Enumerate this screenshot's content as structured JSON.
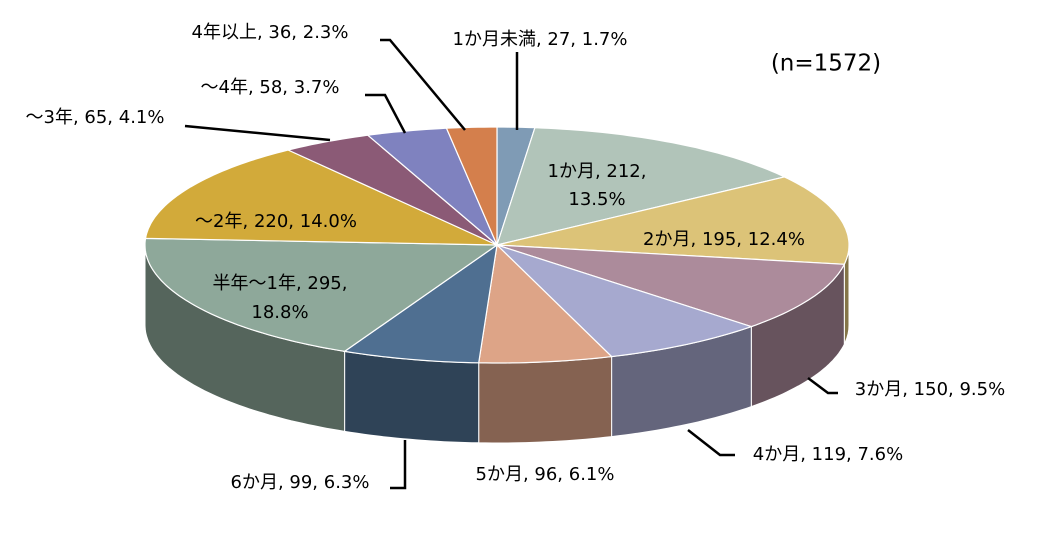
{
  "chart_data": {
    "type": "pie",
    "note": "(n=1572)",
    "values": [
      27,
      212,
      195,
      150,
      119,
      96,
      99,
      295,
      220,
      65,
      58,
      36
    ],
    "value_labels": [
      [
        "1か月未満, 27, 1.7%"
      ],
      [
        "1か月, 212,",
        "13.5%"
      ],
      [
        "2か月, 195, 12.4%"
      ],
      [
        "3か月, 150, 9.5%"
      ],
      [
        "4か月, 119, 7.6%"
      ],
      [
        "5か月, 96, 6.1%"
      ],
      [
        "6か月, 99, 6.3%"
      ],
      [
        "半年～1年, 295,",
        "18.8%"
      ],
      [
        "～2年, 220, 14.0%"
      ],
      [
        "～3年, 65, 4.1%"
      ],
      [
        "～4年, 58, 3.7%"
      ],
      [
        "4年以上, 36, 2.3%"
      ]
    ],
    "colors": [
      "#7f9bb5",
      "#b1c4b9",
      "#dcc378",
      "#ac8b9b",
      "#a6a9cf",
      "#dda487",
      "#4f6f91",
      "#8ea89a",
      "#d2aa3a",
      "#8b5a76",
      "#7f82bf",
      "#d47f4c"
    ]
  }
}
